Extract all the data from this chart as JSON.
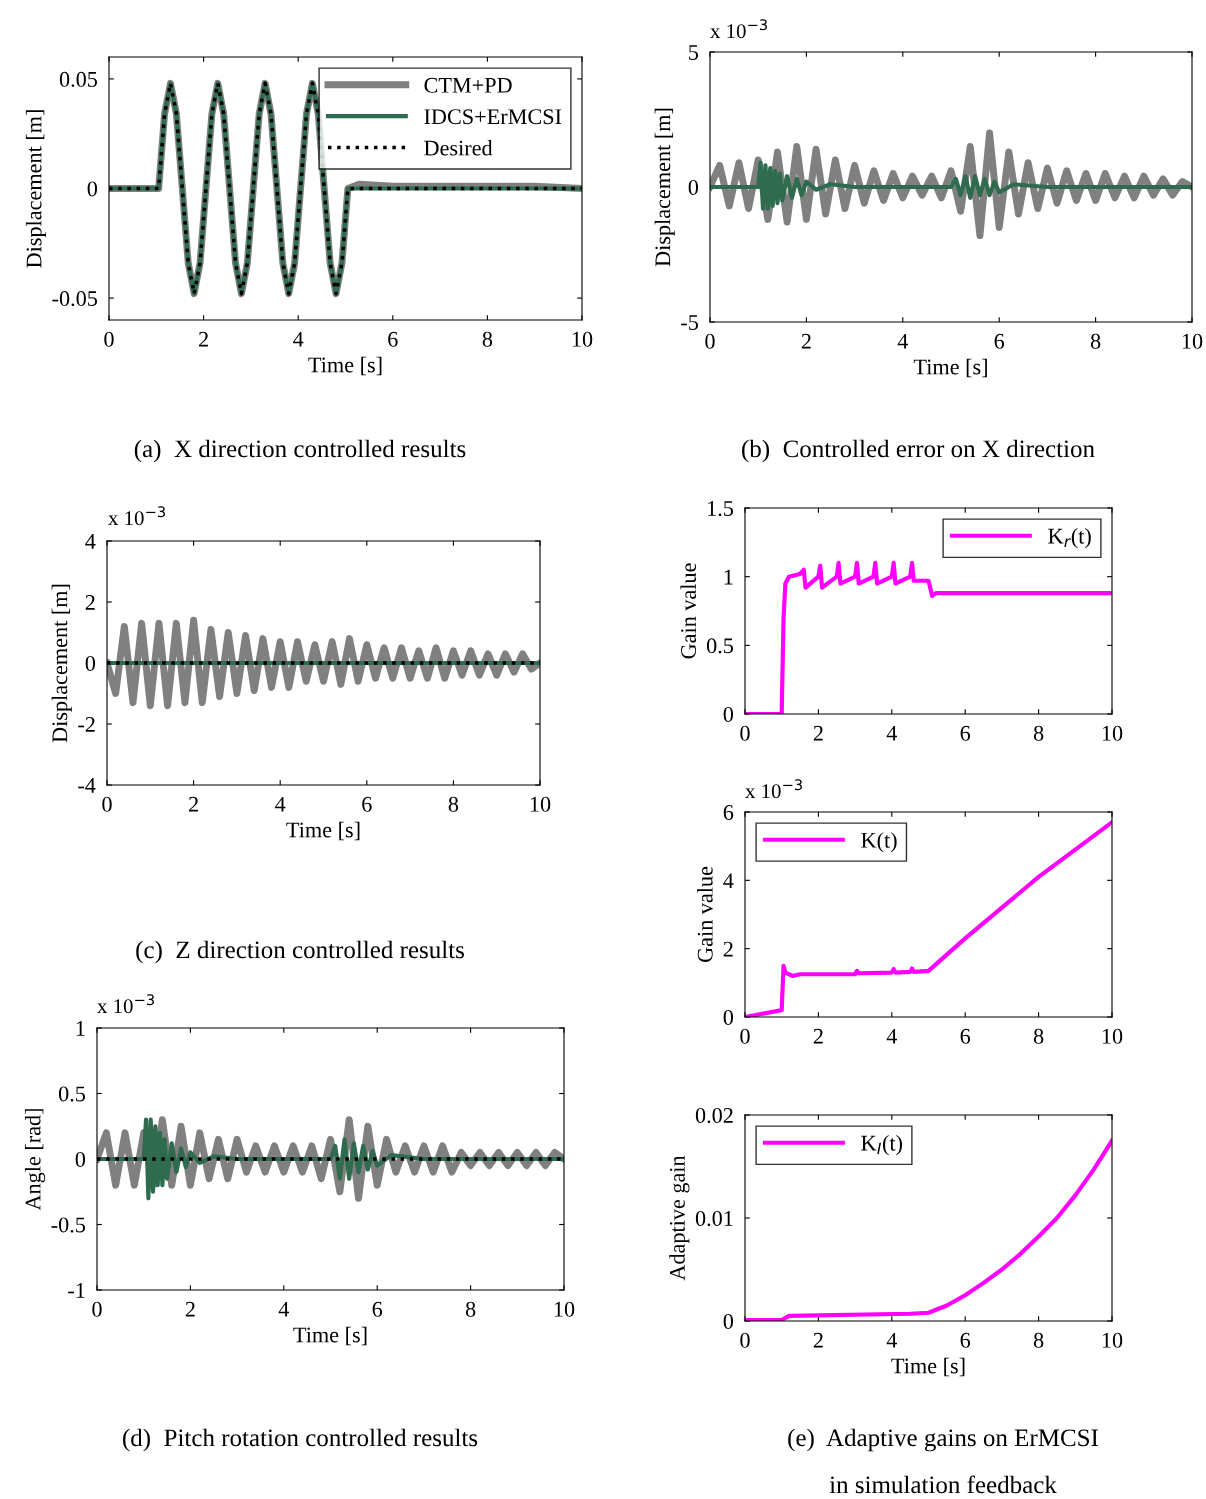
{
  "chart_data": [
    {
      "type": "line",
      "xlabel": "Time [s]",
      "ylabel": "Displacement [m]",
      "xlim": [
        0,
        10
      ],
      "xticks": [
        0,
        2,
        4,
        6,
        8,
        10
      ],
      "ylim": [
        -0.06,
        0.06
      ],
      "yticks": [
        -0.05,
        0,
        0.05
      ],
      "legend": "top right",
      "grid": false,
      "annotations": [
        "(a)  X direction controlled results"
      ],
      "series": [
        {
          "name": "CTM+PD",
          "color": "#808080",
          "line_style": "solid",
          "x": [
            0,
            1.0,
            1.05,
            1.175,
            1.3,
            1.425,
            1.55,
            1.675,
            1.8,
            1.925,
            2.05,
            2.175,
            2.3,
            2.425,
            2.55,
            2.675,
            2.8,
            2.925,
            3.05,
            3.175,
            3.3,
            3.425,
            3.55,
            3.675,
            3.8,
            3.925,
            4.05,
            4.175,
            4.3,
            4.425,
            4.55,
            4.675,
            4.8,
            4.925,
            5.05,
            5.3,
            6,
            7,
            8,
            9,
            10
          ],
          "values": [
            0,
            0,
            0,
            0.034,
            0.048,
            0.034,
            0,
            -0.034,
            -0.048,
            -0.034,
            0,
            0.034,
            0.048,
            0.034,
            0,
            -0.034,
            -0.048,
            -0.034,
            0,
            0.034,
            0.048,
            0.034,
            0,
            -0.034,
            -0.048,
            -0.034,
            0,
            0.034,
            0.048,
            0.034,
            0,
            -0.034,
            -0.048,
            -0.034,
            0,
            0.002,
            0.001,
            0.001,
            0.001,
            0.001,
            0
          ]
        },
        {
          "name": "IDCS+ErMCSI",
          "color": "#2e6b4f",
          "line_style": "solid",
          "x": [
            0,
            1.0,
            1.05,
            1.175,
            1.3,
            1.425,
            1.55,
            1.675,
            1.8,
            1.925,
            2.05,
            2.175,
            2.3,
            2.425,
            2.55,
            2.675,
            2.8,
            2.925,
            3.05,
            3.175,
            3.3,
            3.425,
            3.55,
            3.675,
            3.8,
            3.925,
            4.05,
            4.175,
            4.3,
            4.425,
            4.55,
            4.675,
            4.8,
            4.925,
            5.05,
            10
          ],
          "values": [
            0,
            0,
            0,
            0.034,
            0.048,
            0.034,
            0,
            -0.034,
            -0.048,
            -0.034,
            0,
            0.034,
            0.048,
            0.034,
            0,
            -0.034,
            -0.048,
            -0.034,
            0,
            0.034,
            0.048,
            0.034,
            0,
            -0.034,
            -0.048,
            -0.034,
            0,
            0.034,
            0.048,
            0.034,
            0,
            -0.034,
            -0.048,
            -0.034,
            0,
            0
          ]
        },
        {
          "name": "Desired",
          "color": "#000000",
          "line_style": "dotted",
          "x": [
            0,
            1.0,
            1.05,
            1.175,
            1.3,
            1.425,
            1.55,
            1.675,
            1.8,
            1.925,
            2.05,
            2.175,
            2.3,
            2.425,
            2.55,
            2.675,
            2.8,
            2.925,
            3.05,
            3.175,
            3.3,
            3.425,
            3.55,
            3.675,
            3.8,
            3.925,
            4.05,
            4.175,
            4.3,
            4.425,
            4.55,
            4.675,
            4.8,
            4.925,
            5.05,
            10
          ],
          "values": [
            0,
            0,
            0,
            0.034,
            0.048,
            0.034,
            0,
            -0.034,
            -0.048,
            -0.034,
            0,
            0.034,
            0.048,
            0.034,
            0,
            -0.034,
            -0.048,
            -0.034,
            0,
            0.034,
            0.048,
            0.034,
            0,
            -0.034,
            -0.048,
            -0.034,
            0,
            0.034,
            0.048,
            0.034,
            0,
            -0.034,
            -0.048,
            -0.034,
            0,
            0
          ]
        }
      ]
    },
    {
      "type": "line",
      "xlabel": "Time [s]",
      "ylabel": "Displacement [m]",
      "xlim": [
        0,
        10
      ],
      "xticks": [
        0,
        2,
        4,
        6,
        8,
        10
      ],
      "ylim": [
        -5,
        5
      ],
      "yticks": [
        -5,
        0,
        5
      ],
      "grid": false,
      "annotations": [
        "(b)  Controlled error on X direction",
        "x 10$^{−3}$"
      ],
      "series": [
        {
          "color": "#808080",
          "line_style": "solid",
          "x": [
            0,
            0.2,
            0.4,
            0.6,
            0.8,
            1.0,
            1.2,
            1.4,
            1.6,
            1.8,
            2.0,
            2.2,
            2.4,
            2.6,
            2.8,
            3.0,
            3.2,
            3.4,
            3.6,
            3.8,
            4.0,
            4.2,
            4.4,
            4.6,
            4.8,
            5.0,
            5.2,
            5.4,
            5.6,
            5.8,
            6.0,
            6.2,
            6.4,
            6.6,
            6.8,
            7.0,
            7.2,
            7.4,
            7.6,
            7.8,
            8.0,
            8.2,
            8.4,
            8.6,
            8.8,
            9.0,
            9.2,
            9.4,
            9.6,
            9.8,
            10
          ],
          "values": [
            0,
            0.8,
            -0.7,
            0.9,
            -0.8,
            1.0,
            -1.2,
            1.3,
            -1.3,
            1.5,
            -1.2,
            1.4,
            -1.0,
            1.0,
            -0.8,
            0.8,
            -0.6,
            0.6,
            -0.5,
            0.5,
            -0.4,
            0.4,
            -0.3,
            0.4,
            -0.4,
            0.6,
            -0.9,
            1.5,
            -1.8,
            2.0,
            -1.5,
            1.3,
            -1.0,
            0.9,
            -0.8,
            0.7,
            -0.6,
            0.6,
            -0.5,
            0.5,
            -0.5,
            0.5,
            -0.4,
            0.4,
            -0.4,
            0.4,
            -0.3,
            0.3,
            -0.3,
            0.2,
            0
          ]
        },
        {
          "color": "#2e6b4f",
          "line_style": "solid",
          "x": [
            0,
            1.0,
            1.05,
            1.1,
            1.15,
            1.2,
            1.25,
            1.3,
            1.35,
            1.4,
            1.45,
            1.5,
            1.6,
            1.7,
            1.8,
            1.9,
            2.0,
            2.2,
            2.5,
            3,
            4,
            5.0,
            5.1,
            5.2,
            5.3,
            5.4,
            5.5,
            5.6,
            5.7,
            5.8,
            5.9,
            6.0,
            6.3,
            7,
            8,
            10
          ],
          "values": [
            0,
            0,
            0.9,
            -0.8,
            0.8,
            -0.8,
            0.7,
            -0.7,
            0.6,
            -0.6,
            0.5,
            -0.5,
            0.4,
            -0.4,
            0.3,
            -0.3,
            0.2,
            -0.1,
            0.1,
            0,
            0,
            0,
            0.3,
            -0.3,
            0.4,
            -0.4,
            0.4,
            -0.3,
            0.3,
            -0.3,
            0.2,
            -0.2,
            0.1,
            0,
            0,
            0
          ]
        }
      ]
    },
    {
      "type": "line",
      "xlabel": "Time [s]",
      "ylabel": "Displacement [m]",
      "xlim": [
        0,
        10
      ],
      "xticks": [
        0,
        2,
        4,
        6,
        8,
        10
      ],
      "ylim": [
        -4,
        4
      ],
      "yticks": [
        -4,
        -2,
        0,
        2,
        4
      ],
      "grid": false,
      "annotations": [
        "(c)  Z direction controlled results",
        "x 10$^{−3}$"
      ],
      "series": [
        {
          "color": "#808080",
          "line_style": "solid",
          "x": [
            0,
            0.2,
            0.4,
            0.6,
            0.8,
            1.0,
            1.2,
            1.4,
            1.6,
            1.8,
            2.0,
            2.2,
            2.4,
            2.6,
            2.8,
            3.0,
            3.2,
            3.4,
            3.6,
            3.8,
            4.0,
            4.2,
            4.4,
            4.6,
            4.8,
            5.0,
            5.2,
            5.4,
            5.6,
            5.8,
            6.0,
            6.2,
            6.4,
            6.6,
            6.8,
            7.0,
            7.2,
            7.4,
            7.6,
            7.8,
            8.0,
            8.2,
            8.4,
            8.6,
            8.8,
            9.0,
            9.2,
            9.4,
            9.6,
            9.8,
            10
          ],
          "values": [
            0,
            -1.0,
            1.2,
            -1.3,
            1.3,
            -1.4,
            1.3,
            -1.4,
            1.3,
            -1.3,
            1.4,
            -1.3,
            1.1,
            -1.1,
            1.0,
            -1.0,
            0.9,
            -0.9,
            0.8,
            -0.8,
            0.7,
            -0.8,
            0.7,
            -0.6,
            0.6,
            -0.6,
            0.7,
            -0.7,
            0.8,
            -0.6,
            0.6,
            -0.5,
            0.5,
            -0.5,
            0.5,
            -0.5,
            0.4,
            -0.5,
            0.5,
            -0.5,
            0.4,
            -0.4,
            0.4,
            -0.4,
            0.3,
            -0.4,
            0.3,
            -0.3,
            0.3,
            -0.2,
            0
          ]
        },
        {
          "color": "#2e6b4f",
          "line_style": "solid",
          "x": [
            0,
            10
          ],
          "values": [
            0,
            0
          ]
        },
        {
          "color": "#000000",
          "line_style": "dotted",
          "x": [
            0,
            10
          ],
          "values": [
            0,
            0
          ]
        }
      ]
    },
    {
      "type": "line",
      "xlabel": "Time [s]",
      "ylabel": "Angle [rad]",
      "xlim": [
        0,
        10
      ],
      "xticks": [
        0,
        2,
        4,
        6,
        8,
        10
      ],
      "ylim": [
        -1,
        1
      ],
      "yticks": [
        -1,
        -0.5,
        0,
        0.5,
        1
      ],
      "grid": false,
      "annotations": [
        "(d)  Pitch rotation controlled results",
        "x 10$^{−3}$"
      ],
      "series": [
        {
          "color": "#808080",
          "line_style": "solid",
          "x": [
            0,
            0.2,
            0.4,
            0.6,
            0.8,
            1.0,
            1.2,
            1.4,
            1.6,
            1.8,
            2.0,
            2.2,
            2.4,
            2.6,
            2.8,
            3.0,
            3.2,
            3.4,
            3.6,
            3.8,
            4.0,
            4.2,
            4.4,
            4.6,
            4.8,
            5.0,
            5.2,
            5.4,
            5.6,
            5.8,
            6.0,
            6.2,
            6.4,
            6.6,
            6.8,
            7.0,
            7.2,
            7.4,
            7.6,
            7.8,
            8.0,
            8.2,
            8.4,
            8.6,
            8.8,
            9.0,
            9.2,
            9.4,
            9.6,
            9.8,
            10
          ],
          "values": [
            0,
            0.2,
            -0.2,
            0.2,
            -0.2,
            0.2,
            -0.2,
            0.3,
            -0.2,
            0.25,
            -0.2,
            0.2,
            -0.15,
            0.15,
            -0.15,
            0.15,
            -0.1,
            0.1,
            -0.1,
            0.1,
            -0.1,
            0.1,
            -0.1,
            0.1,
            -0.15,
            0.15,
            -0.25,
            0.3,
            -0.3,
            0.25,
            -0.2,
            0.15,
            -0.1,
            0.1,
            -0.1,
            0.1,
            -0.1,
            0.1,
            -0.1,
            0.05,
            -0.05,
            0.05,
            -0.05,
            0.05,
            -0.05,
            0.05,
            -0.05,
            0.05,
            -0.05,
            0.05,
            0
          ]
        },
        {
          "color": "#2e6b4f",
          "line_style": "solid",
          "x": [
            0,
            1.0,
            1.05,
            1.1,
            1.15,
            1.2,
            1.25,
            1.3,
            1.35,
            1.4,
            1.45,
            1.5,
            1.6,
            1.7,
            1.8,
            1.9,
            2.0,
            2.2,
            2.5,
            3,
            4,
            5.0,
            5.1,
            5.2,
            5.3,
            5.4,
            5.5,
            5.6,
            5.7,
            5.8,
            5.9,
            6.0,
            6.3,
            7,
            8,
            10
          ],
          "values": [
            0,
            0,
            0.3,
            -0.3,
            0.3,
            -0.25,
            0.25,
            -0.2,
            0.2,
            -0.2,
            0.15,
            -0.15,
            0.12,
            -0.1,
            0.08,
            -0.06,
            0.05,
            -0.03,
            0.02,
            0,
            0,
            0,
            0.1,
            -0.15,
            0.15,
            -0.15,
            0.12,
            -0.1,
            0.1,
            -0.08,
            0.06,
            -0.05,
            0.03,
            0,
            0,
            0
          ]
        },
        {
          "color": "#000000",
          "line_style": "dotted",
          "x": [
            0,
            10
          ],
          "values": [
            0,
            0
          ]
        }
      ]
    },
    {
      "type": "line",
      "ylabel": "Gain value",
      "xlim": [
        0,
        10
      ],
      "xticks": [
        0,
        2,
        4,
        6,
        8,
        10
      ],
      "ylim": [
        0,
        1.5
      ],
      "yticks": [
        0,
        0.5,
        1,
        1.5
      ],
      "legend": "top right",
      "grid": false,
      "series": [
        {
          "name": "K$_{r}$(t)",
          "color": "#ff00ff",
          "line_style": "solid",
          "x": [
            0,
            1.0,
            1.05,
            1.1,
            1.2,
            1.5,
            1.6,
            1.65,
            2.0,
            2.05,
            2.1,
            2.5,
            2.55,
            2.6,
            3.0,
            3.05,
            3.1,
            3.5,
            3.55,
            3.6,
            4.0,
            4.05,
            4.1,
            4.5,
            4.55,
            4.6,
            5.0,
            5.1,
            5.2,
            10
          ],
          "values": [
            0,
            0,
            0.7,
            0.95,
            1.0,
            1.02,
            1.05,
            0.92,
            1.0,
            1.08,
            0.92,
            1.0,
            1.1,
            0.95,
            1.0,
            1.1,
            0.95,
            1.0,
            1.1,
            0.95,
            1.0,
            1.1,
            0.95,
            1.0,
            1.1,
            0.97,
            0.97,
            0.86,
            0.88,
            0.88
          ]
        }
      ]
    },
    {
      "type": "line",
      "ylabel": "Gain value",
      "xlim": [
        0,
        10
      ],
      "xticks": [
        0,
        2,
        4,
        6,
        8,
        10
      ],
      "ylim": [
        0,
        6
      ],
      "yticks": [
        0,
        2,
        4,
        6
      ],
      "legend": "top left",
      "grid": false,
      "annotations": [
        "x 10$^{−3}$"
      ],
      "series": [
        {
          "name": "K(t)",
          "color": "#ff00ff",
          "line_style": "solid",
          "x": [
            0,
            1.0,
            1.05,
            1.1,
            1.3,
            1.5,
            3,
            3.05,
            3.1,
            4,
            4.05,
            4.1,
            4.5,
            4.55,
            4.6,
            5.0,
            6,
            7,
            8,
            9,
            10
          ],
          "values": [
            0,
            0.2,
            1.5,
            1.3,
            1.2,
            1.25,
            1.25,
            1.35,
            1.28,
            1.3,
            1.4,
            1.3,
            1.32,
            1.42,
            1.32,
            1.35,
            2.3,
            3.2,
            4.1,
            4.9,
            5.7
          ]
        }
      ]
    },
    {
      "type": "line",
      "xlabel": "Time [s]",
      "ylabel": "Adaptive gain",
      "xlim": [
        0,
        10
      ],
      "xticks": [
        0,
        2,
        4,
        6,
        8,
        10
      ],
      "ylim": [
        0,
        0.02
      ],
      "yticks": [
        0,
        0.01,
        0.02
      ],
      "legend": "top left",
      "grid": false,
      "annotations": [
        "(e)  Adaptive gains on ErMCSI",
        "in simulation feedback"
      ],
      "series": [
        {
          "name": "K$_{I}$(t)",
          "color": "#ff00ff",
          "line_style": "solid",
          "x": [
            0,
            1.0,
            1.2,
            4.5,
            5.0,
            5.5,
            6,
            6.5,
            7,
            7.5,
            8,
            8.5,
            9,
            9.5,
            10
          ],
          "values": [
            0.0001,
            0.0001,
            0.0005,
            0.0007,
            0.0008,
            0.0015,
            0.0025,
            0.0037,
            0.005,
            0.0065,
            0.0082,
            0.01,
            0.0122,
            0.0147,
            0.0175
          ]
        }
      ]
    }
  ]
}
